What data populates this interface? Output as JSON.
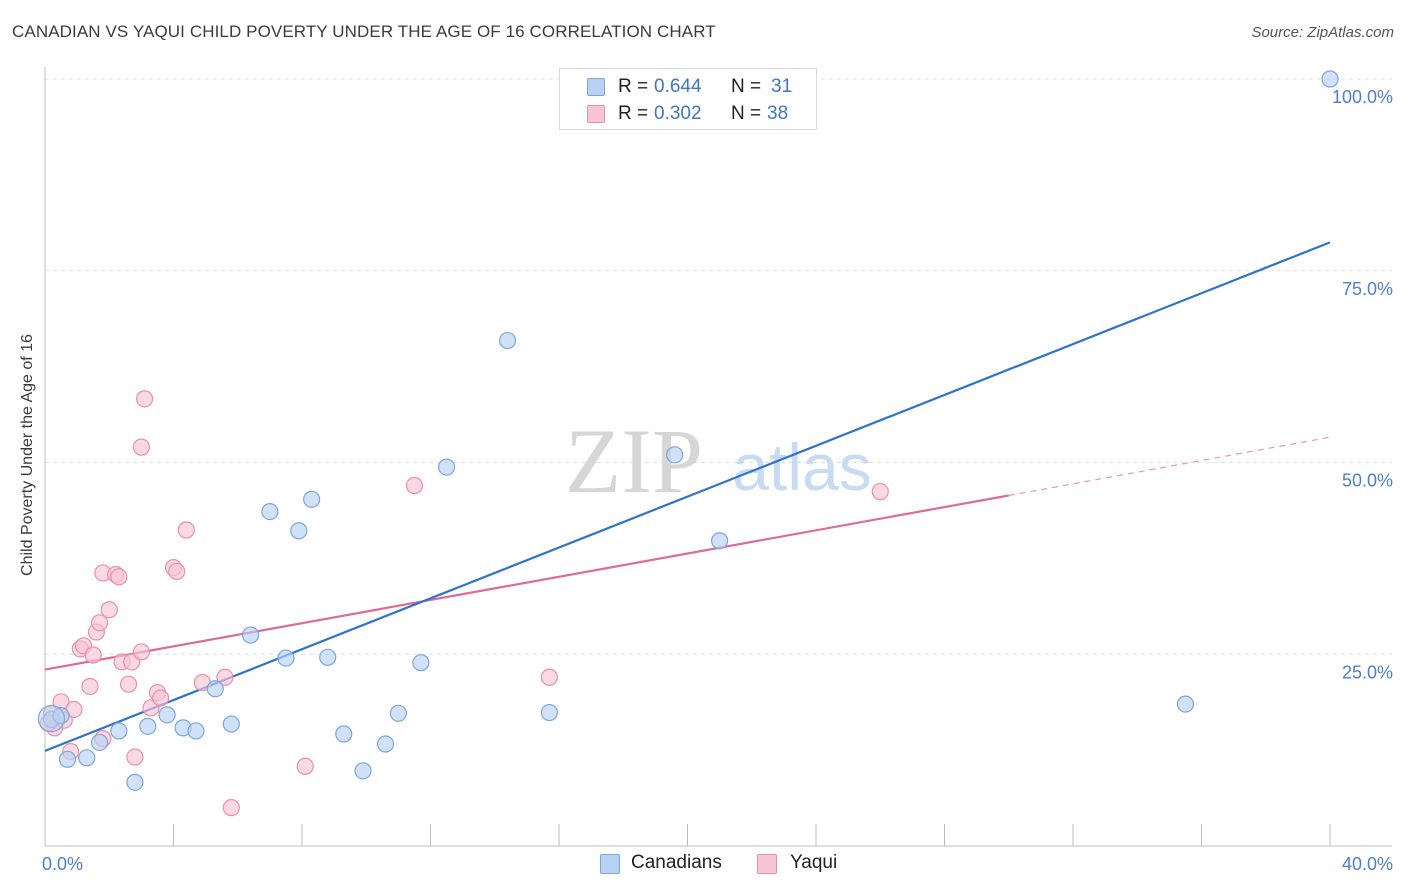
{
  "title": "CANADIAN VS YAQUI CHILD POVERTY UNDER THE AGE OF 16 CORRELATION CHART",
  "source": "Source: ZipAtlas.com",
  "watermark": {
    "zip": "ZIP",
    "atlas": "atlas"
  },
  "legend": {
    "r_label": "R =",
    "n_label": "N =",
    "rows": [
      {
        "r": "0.644",
        "n": "31"
      },
      {
        "r": "0.302",
        "n": "38"
      }
    ]
  },
  "colors": {
    "canadians_fill": "#b9d1f2",
    "canadians_stroke": "#7aa6e0",
    "canadians_line": "#2e72cf",
    "yaqui_fill": "#f7c4d3",
    "yaqui_stroke": "#ea8fab",
    "yaqui_line": "#e06a96",
    "axis_text": "#4f7fd0"
  },
  "chart_data": {
    "type": "scatter",
    "title": "CANADIAN VS YAQUI CHILD POVERTY UNDER THE AGE OF 16 CORRELATION CHART",
    "xlabel": "",
    "ylabel": "Child Poverty Under the Age of 16",
    "xlim": [
      0,
      40
    ],
    "ylim": [
      0,
      100
    ],
    "x_tick_labels": [
      "0.0%",
      "40.0%"
    ],
    "y_ticks": [
      25,
      50,
      75,
      100
    ],
    "y_tick_labels": [
      "25.0%",
      "50.0%",
      "75.0%",
      "100.0%"
    ],
    "legend_position": "bottom-center",
    "series": [
      {
        "name": "Canadians",
        "r": 0.644,
        "n": 31,
        "points": [
          [
            0.2,
            16.5
          ],
          [
            0.5,
            17.0
          ],
          [
            0.7,
            11.3
          ],
          [
            1.3,
            11.5
          ],
          [
            1.7,
            13.5
          ],
          [
            2.3,
            15.0
          ],
          [
            2.8,
            8.3
          ],
          [
            3.2,
            15.6
          ],
          [
            3.8,
            17.1
          ],
          [
            4.3,
            15.4
          ],
          [
            4.7,
            15.0
          ],
          [
            5.3,
            20.5
          ],
          [
            5.8,
            15.9
          ],
          [
            6.4,
            27.5
          ],
          [
            7.0,
            43.6
          ],
          [
            7.5,
            24.5
          ],
          [
            7.9,
            41.1
          ],
          [
            8.3,
            45.2
          ],
          [
            8.8,
            24.6
          ],
          [
            9.3,
            14.6
          ],
          [
            9.9,
            9.8
          ],
          [
            10.6,
            13.3
          ],
          [
            11.0,
            17.3
          ],
          [
            11.7,
            23.9
          ],
          [
            12.5,
            49.4
          ],
          [
            14.4,
            65.9
          ],
          [
            15.7,
            17.4
          ],
          [
            19.6,
            51.0
          ],
          [
            21.0,
            39.8
          ],
          [
            35.5,
            18.5
          ],
          [
            40.0,
            100.0
          ]
        ],
        "trend": {
          "x": [
            0,
            40
          ],
          "y": [
            12.4,
            78.7
          ]
        }
      },
      {
        "name": "Yaqui",
        "r": 0.302,
        "n": 38,
        "points": [
          [
            0.2,
            17.3
          ],
          [
            0.3,
            15.4
          ],
          [
            0.5,
            18.8
          ],
          [
            0.6,
            16.4
          ],
          [
            0.8,
            12.3
          ],
          [
            0.9,
            17.8
          ],
          [
            1.1,
            25.7
          ],
          [
            1.2,
            26.1
          ],
          [
            1.4,
            20.8
          ],
          [
            1.5,
            24.9
          ],
          [
            1.6,
            27.9
          ],
          [
            1.7,
            29.1
          ],
          [
            1.8,
            14.0
          ],
          [
            1.8,
            35.6
          ],
          [
            2.0,
            30.8
          ],
          [
            2.2,
            35.4
          ],
          [
            2.3,
            35.1
          ],
          [
            2.4,
            24.0
          ],
          [
            2.6,
            21.1
          ],
          [
            2.7,
            24.0
          ],
          [
            2.8,
            11.6
          ],
          [
            3.0,
            52.0
          ],
          [
            3.0,
            25.3
          ],
          [
            3.1,
            58.3
          ],
          [
            3.3,
            18.0
          ],
          [
            3.5,
            20.0
          ],
          [
            3.6,
            19.3
          ],
          [
            4.0,
            36.3
          ],
          [
            4.1,
            35.8
          ],
          [
            4.4,
            41.2
          ],
          [
            4.9,
            21.3
          ],
          [
            5.6,
            22.0
          ],
          [
            5.8,
            5.0
          ],
          [
            8.1,
            10.4
          ],
          [
            11.5,
            47.0
          ],
          [
            15.7,
            22.0
          ],
          [
            26.0,
            46.2
          ],
          [
            0.1,
            16.0
          ]
        ],
        "trend": {
          "x": [
            0,
            30.0
          ],
          "y": [
            23.0,
            45.7
          ]
        },
        "trend_dashed": {
          "x": [
            30.0,
            40
          ],
          "y": [
            45.7,
            53.3
          ]
        }
      }
    ]
  },
  "bottom_legend": [
    "Canadians",
    "Yaqui"
  ]
}
